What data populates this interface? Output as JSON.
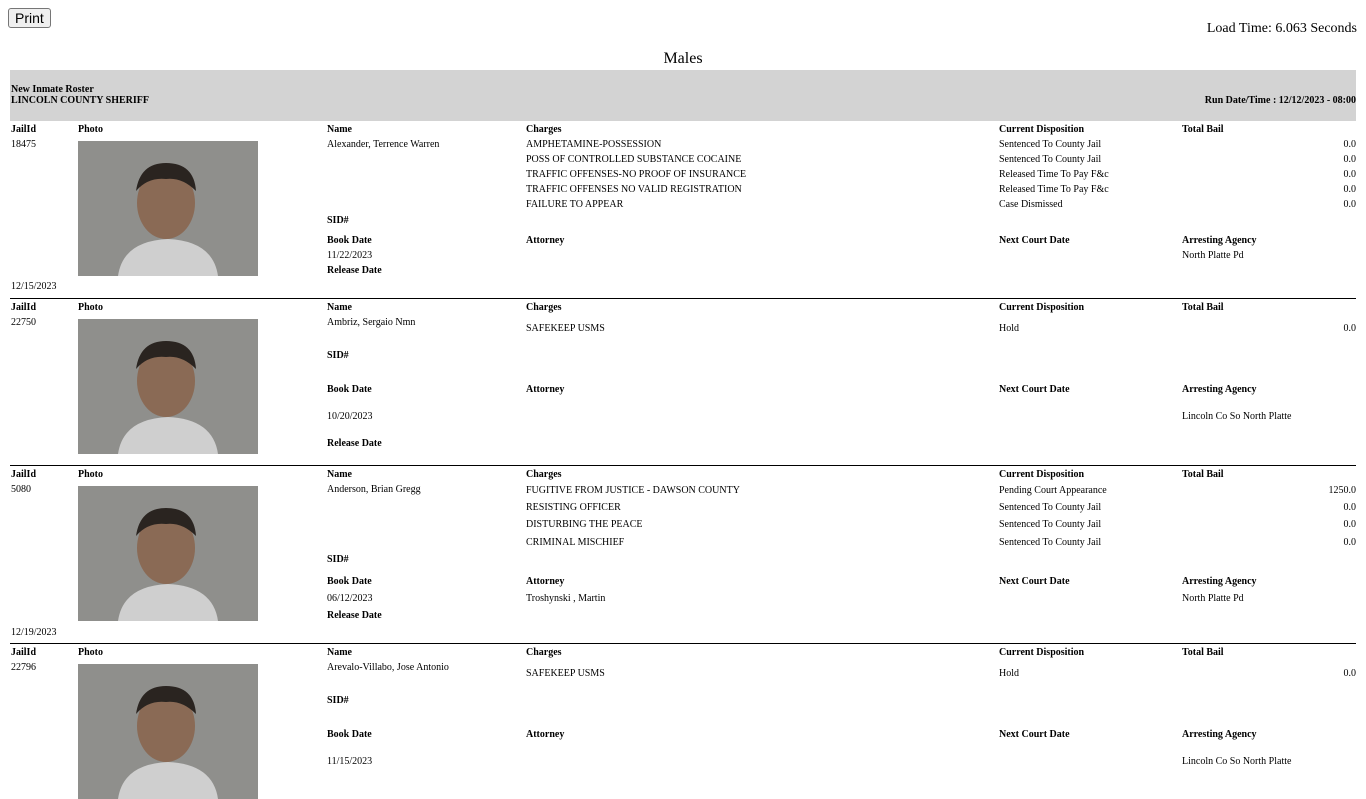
{
  "print_label": "Print",
  "load_time": "Load Time: 6.063 Seconds",
  "section_title": "Males",
  "banner": {
    "report": "New Inmate Roster",
    "agency": "LINCOLN COUNTY SHERIFF",
    "run": "Run Date/Time : 12/12/2023 - 08:00"
  },
  "labels": {
    "jailid": "JailId",
    "photo": "Photo",
    "name": "Name",
    "charges": "Charges",
    "disposition": "Current Disposition",
    "bail": "Total Bail",
    "sid": "SID#",
    "book": "Book Date",
    "attorney": "Attorney",
    "court": "Next Court Date",
    "arresting": "Arresting Agency",
    "release": "Release Date"
  },
  "inmates": [
    {
      "jailid": "18475",
      "name": "Alexander, Terrence Warren",
      "charges": [
        {
          "charge": "AMPHETAMINE-POSSESSION",
          "disposition": "Sentenced To County Jail",
          "bail": "0.0"
        },
        {
          "charge": "POSS OF CONTROLLED SUBSTANCE COCAINE",
          "disposition": "Sentenced To County Jail",
          "bail": "0.0"
        },
        {
          "charge": "TRAFFIC OFFENSES-NO PROOF OF INSURANCE",
          "disposition": "Released Time To Pay F&c",
          "bail": "0.0"
        },
        {
          "charge": "TRAFFIC OFFENSES NO VALID REGISTRATION",
          "disposition": "Released Time To Pay F&c",
          "bail": "0.0"
        },
        {
          "charge": "FAILURE TO APPEAR",
          "disposition": "Case Dismissed",
          "bail": "0.0"
        }
      ],
      "book_date": "11/22/2023",
      "attorney": "",
      "agency": "North Platte Pd",
      "release_date": "12/15/2023"
    },
    {
      "jailid": "22750",
      "name": "Ambriz, Sergaio Nmn",
      "charges": [
        {
          "charge": "SAFEKEEP USMS",
          "disposition": "Hold",
          "bail": "0.0"
        }
      ],
      "book_date": "10/20/2023",
      "attorney": "",
      "agency": "Lincoln Co So North Platte",
      "release_date": ""
    },
    {
      "jailid": "5080",
      "name": "Anderson, Brian Gregg",
      "charges": [
        {
          "charge": "FUGITIVE FROM JUSTICE - DAWSON COUNTY",
          "disposition": "Pending Court Appearance",
          "bail": "1250.0"
        },
        {
          "charge": "RESISTING OFFICER",
          "disposition": "Sentenced To County Jail",
          "bail": "0.0"
        },
        {
          "charge": "DISTURBING THE PEACE",
          "disposition": "Sentenced To County Jail",
          "bail": "0.0"
        },
        {
          "charge": "CRIMINAL MISCHIEF",
          "disposition": "Sentenced To County Jail",
          "bail": "0.0"
        }
      ],
      "book_date": "06/12/2023",
      "attorney": "Troshynski , Martin",
      "agency": "North Platte Pd",
      "release_date": "12/19/2023"
    },
    {
      "jailid": "22796",
      "name": "Arevalo-Villabo, Jose Antonio",
      "charges": [
        {
          "charge": "SAFEKEEP USMS",
          "disposition": "Hold",
          "bail": "0.0"
        }
      ],
      "book_date": "11/15/2023",
      "attorney": "",
      "agency": "Lincoln Co So North Platte",
      "release_date": ""
    }
  ]
}
